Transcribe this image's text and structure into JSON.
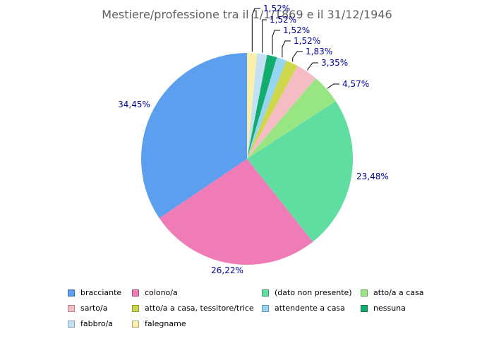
{
  "title": "Mestiere/professione tra il 1/1/1869 e il 31/12/1946",
  "colors": {
    "background": "#ffffff",
    "title_text": "#616161",
    "percent_label_text": "#000099",
    "leader_line": "#000000",
    "legend_text": "#000000"
  },
  "chart_data": {
    "type": "pie",
    "title": "Mestiere/professione tra il 1/1/1869 e il 31/12/1946",
    "unit": "%",
    "decimal_separator": ",",
    "direction": "counterclockwise-from-top",
    "legend_position": "bottom",
    "slices": [
      {
        "label": "bracciante",
        "value": 34.45,
        "percent_label": "34,45%",
        "color": "#5C9FEE"
      },
      {
        "label": "colono/a",
        "value": 26.22,
        "percent_label": "26,22%",
        "color": "#F07CB7"
      },
      {
        "label": "(dato non presente)",
        "value": 23.48,
        "percent_label": "23,48%",
        "color": "#60DEA2"
      },
      {
        "label": "atto/a a casa",
        "value": 4.57,
        "percent_label": "4,57%",
        "color": "#97E683"
      },
      {
        "label": "sarto/a",
        "value": 3.35,
        "percent_label": "3,35%",
        "color": "#F5BCC3"
      },
      {
        "label": "atto/a a casa, tessitore/trice",
        "value": 1.83,
        "percent_label": "1,83%",
        "color": "#CFD74B"
      },
      {
        "label": "attendente a casa",
        "value": 1.52,
        "percent_label": "1,52%",
        "color": "#97D6F0"
      },
      {
        "label": "nessuna",
        "value": 1.52,
        "percent_label": "1,52%",
        "color": "#12AC6E"
      },
      {
        "label": "fabbro/a",
        "value": 1.52,
        "percent_label": "1,52%",
        "color": "#C4E1F4"
      },
      {
        "label": "falegname",
        "value": 1.52,
        "percent_label": "1,52%",
        "color": "#FAF0AC"
      }
    ]
  }
}
